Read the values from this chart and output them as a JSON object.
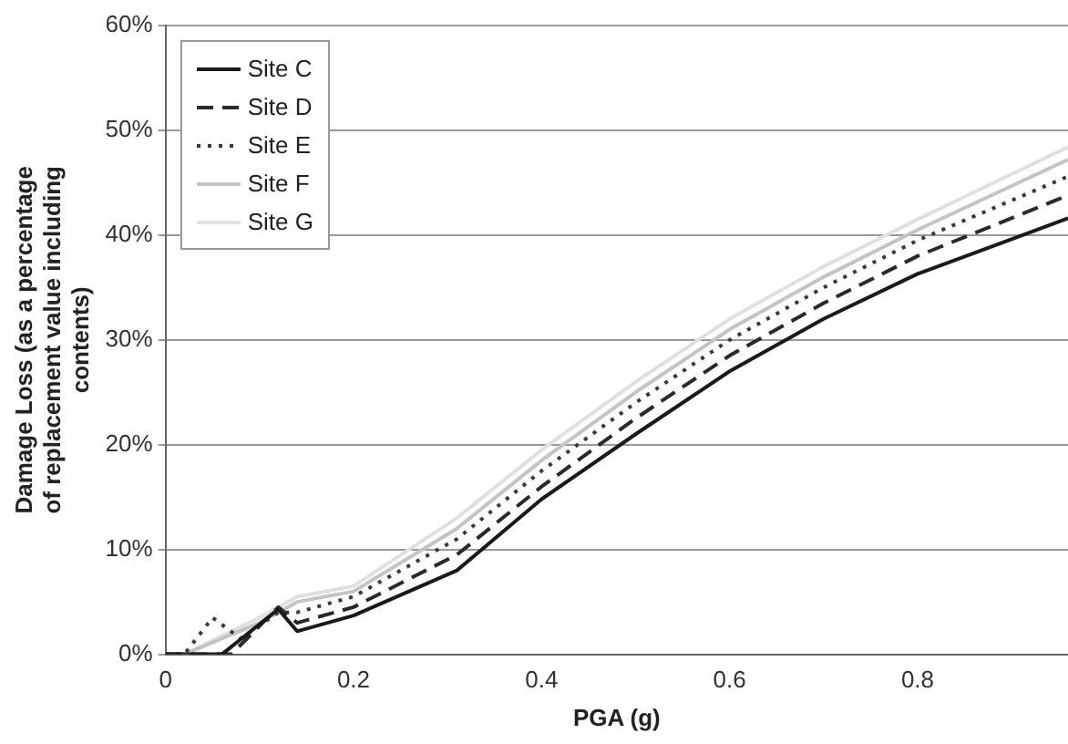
{
  "chart_data": {
    "type": "line",
    "xlabel": "PGA (g)",
    "ylabel": "Damage Loss (as a percentage\nof replacement value including\ncontents)",
    "xlim": [
      0,
      0.96
    ],
    "xticks": [
      0,
      0.2,
      0.4,
      0.6,
      0.8
    ],
    "ylim": [
      0,
      60
    ],
    "yticks": [
      {
        "value": 0,
        "label": "0%"
      },
      {
        "value": 10,
        "label": "10%"
      },
      {
        "value": 20,
        "label": "20%"
      },
      {
        "value": 30,
        "label": "30%"
      },
      {
        "value": 40,
        "label": "40%"
      },
      {
        "value": 50,
        "label": "50%"
      },
      {
        "value": 60,
        "label": "60%"
      }
    ],
    "grid": "y",
    "legend": "top left",
    "marker": "none",
    "series": [
      {
        "name": "Site C",
        "color": "#1a1a1a",
        "line_style": "solid",
        "x": [
          0,
          0.06,
          0.12,
          0.14,
          0.2,
          0.31,
          0.4,
          0.5,
          0.6,
          0.7,
          0.8,
          0.96
        ],
        "values": [
          0,
          0,
          4.3,
          2.2,
          3.7,
          8,
          14.8,
          21,
          27,
          32,
          36.3,
          41.6
        ]
      },
      {
        "name": "Site D",
        "color": "#2a2a2a",
        "line_style": "dashed",
        "x": [
          0,
          0.07,
          0.12,
          0.14,
          0.2,
          0.31,
          0.4,
          0.5,
          0.6,
          0.7,
          0.8,
          0.96
        ],
        "values": [
          0,
          0,
          4.5,
          3,
          4.5,
          9.5,
          16,
          22.5,
          28.5,
          33.5,
          38,
          43.8
        ]
      },
      {
        "name": "Site E",
        "color": "#3a3a3a",
        "line_style": "dotted",
        "x": [
          0,
          0.02,
          0.05,
          0.08,
          0.12,
          0.14,
          0.2,
          0.31,
          0.4,
          0.5,
          0.6,
          0.7,
          0.8,
          0.96
        ],
        "values": [
          0,
          0,
          3.5,
          1.5,
          4,
          4,
          5.5,
          11,
          17.5,
          24,
          30,
          35,
          39.5,
          45.6
        ]
      },
      {
        "name": "Site F",
        "color": "#c4c4c4",
        "line_style": "solid",
        "x": [
          0,
          0.02,
          0.1,
          0.14,
          0.2,
          0.31,
          0.4,
          0.5,
          0.6,
          0.7,
          0.8,
          0.96
        ],
        "values": [
          0,
          0,
          3,
          5,
          6,
          12,
          18.5,
          25,
          31,
          36,
          40.5,
          47.2
        ]
      },
      {
        "name": "Site G",
        "color": "#e0e0e0",
        "line_style": "solid",
        "x": [
          0,
          0.02,
          0.1,
          0.14,
          0.2,
          0.31,
          0.4,
          0.5,
          0.6,
          0.7,
          0.8,
          0.96
        ],
        "values": [
          0,
          0,
          3.5,
          5.5,
          6.5,
          13,
          19.5,
          26,
          32,
          37,
          41.5,
          48.4
        ]
      }
    ]
  }
}
